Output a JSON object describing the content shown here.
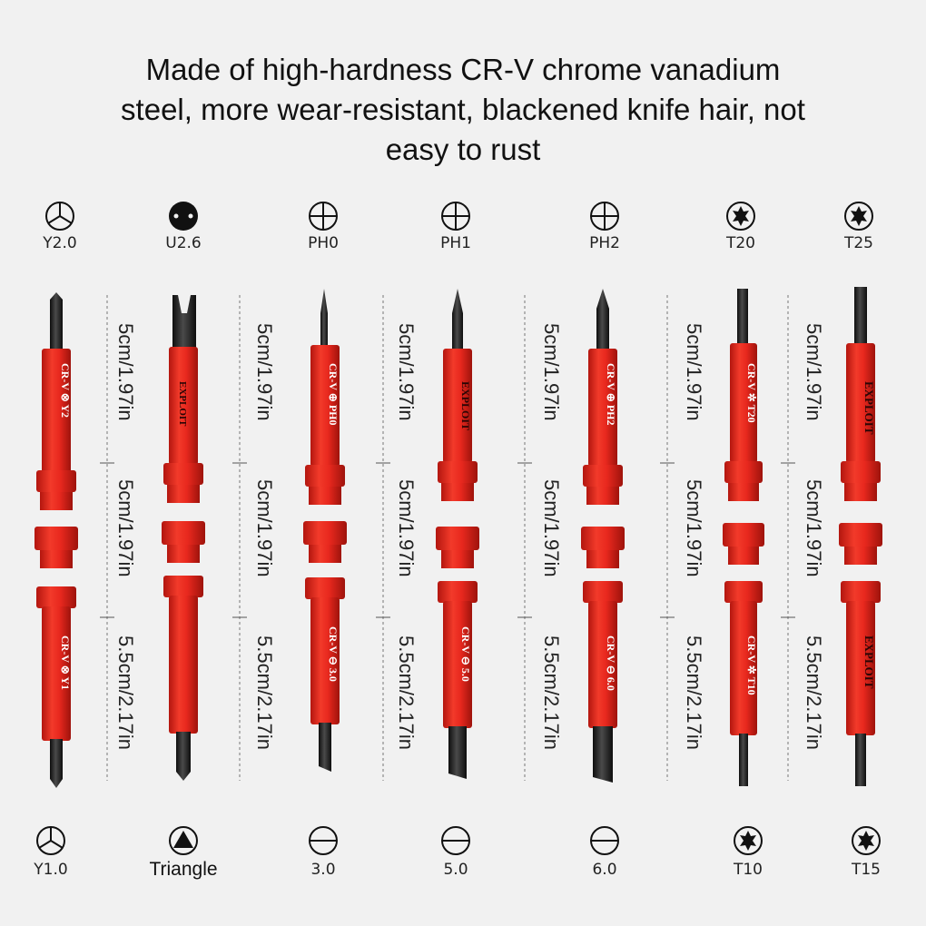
{
  "headline": {
    "line1": "Made of high-hardness CR-V chrome vanadium",
    "line2": "steel, more wear-resistant, blackened knife hair, not",
    "line3": "easy to rust"
  },
  "colors": {
    "handle": "#e8281e",
    "handle_shade": "#b3160f",
    "handle_light": "#ff5a44",
    "steel": "#1e1e1e",
    "background": "#f1f1f1"
  },
  "top_tips": [
    {
      "label": "Y2.0",
      "icon": "tri-wing-icon"
    },
    {
      "label": "U2.6",
      "icon": "spanner-icon"
    },
    {
      "label": "PH0",
      "icon": "phillips-icon"
    },
    {
      "label": "PH1",
      "icon": "phillips-icon"
    },
    {
      "label": "PH2",
      "icon": "phillips-icon"
    },
    {
      "label": "T20",
      "icon": "torx-icon"
    },
    {
      "label": "T25",
      "icon": "torx-icon"
    }
  ],
  "bottom_tips": [
    {
      "label": "Y1.0",
      "icon": "tri-wing-icon"
    },
    {
      "label": "Triangle",
      "icon": "triangle-icon"
    },
    {
      "label": "3.0",
      "icon": "slotted-icon"
    },
    {
      "label": "5.0",
      "icon": "slotted-icon"
    },
    {
      "label": "6.0",
      "icon": "slotted-icon"
    },
    {
      "label": "T10",
      "icon": "torx-icon"
    },
    {
      "label": "T15",
      "icon": "torx-icon"
    }
  ],
  "measurements": {
    "top": "5cm/1.97in",
    "middle": "5cm/1.97in",
    "bottom": "5.5cm/2.17in"
  },
  "handle_marks": [
    {
      "top": "CR-V ⊗ Y2",
      "bottom": "CR-V ⊗ Y1"
    },
    {
      "top": "EXPLOIT",
      "bottom": ""
    },
    {
      "top": "CR-V ⊕ PH0",
      "bottom": "CR-V ⊖ 3.0"
    },
    {
      "top": "EXPLOIT",
      "bottom": "CR-V ⊖ 5.0"
    },
    {
      "top": "CR-V ⊕ PH2",
      "bottom": "CR-V ⊖ 6.0"
    },
    {
      "top": "CR-V ✲ T20",
      "bottom": "CR-V ✲ T10"
    },
    {
      "top": "EXPLOIT",
      "bottom": "EXPLOIT"
    }
  ]
}
